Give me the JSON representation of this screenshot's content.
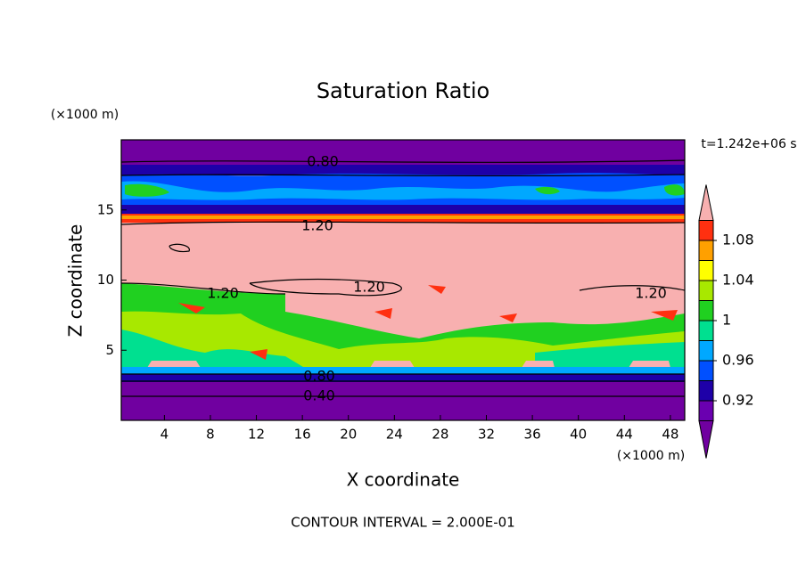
{
  "chart_data": {
    "type": "contour",
    "title": "Saturation Ratio",
    "x_label": "X coordinate",
    "y_label": "Z coordinate",
    "x_unit": "(×1000 m)",
    "y_unit": "(×1000 m)",
    "time_label": "t=1.242e+06 s",
    "footer": "CONTOUR INTERVAL = 2.000E-01",
    "xlim": [
      0.25,
      49.25
    ],
    "xticks": [
      4,
      8,
      12,
      16,
      20,
      24,
      28,
      32,
      36,
      40,
      44,
      48
    ],
    "ylim": [
      0,
      20
    ],
    "yticks": [
      5,
      10,
      15
    ],
    "colorbar": {
      "clim": [
        0.9,
        1.1
      ],
      "levels": [
        0.92,
        0.96,
        1,
        1.04,
        1.08
      ],
      "colors": [
        "#7000a0",
        "#6a00b0",
        "#1e00a8",
        "#0050ff",
        "#00a8ff",
        "#00e090",
        "#20d020",
        "#a8e800",
        "#ffff00",
        "#ffa000",
        "#ff3010",
        "#f8b0b0"
      ]
    },
    "contour_labels": [
      {
        "value": 0.8,
        "label": "0.80"
      },
      {
        "value": 1.2,
        "label": "1.20"
      },
      {
        "value": 1.2,
        "label": "1.20"
      },
      {
        "value": 1.2,
        "label": "1.20"
      },
      {
        "value": 1.2,
        "label": "1.20"
      },
      {
        "value": 0.8,
        "label": "0.80"
      },
      {
        "value": 0.4,
        "label": "0.40"
      }
    ]
  }
}
